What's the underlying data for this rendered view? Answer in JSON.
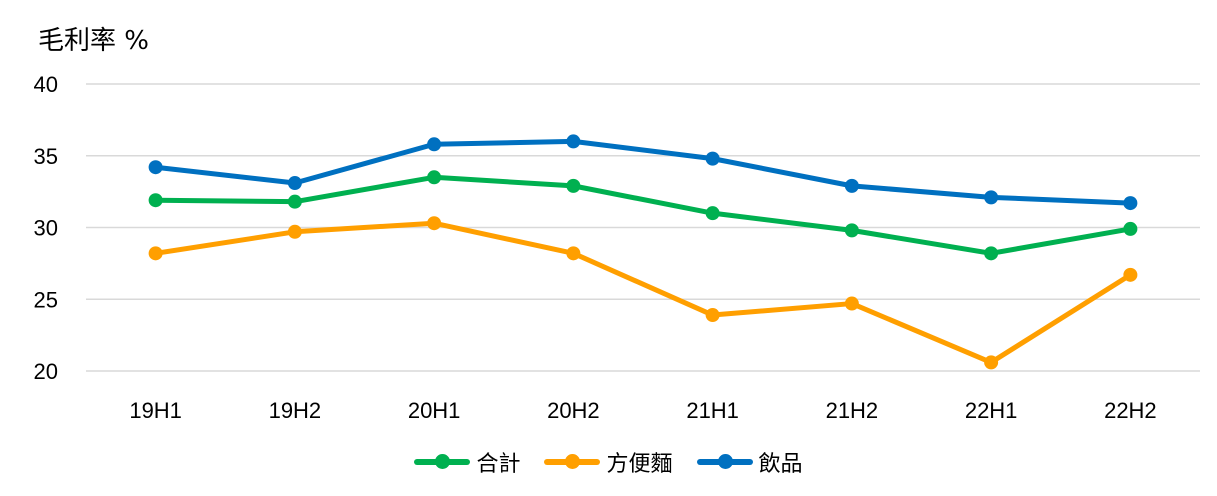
{
  "chart_data": {
    "type": "line",
    "ylabel": "毛利率 %",
    "categories": [
      "19H1",
      "19H2",
      "20H1",
      "20H2",
      "21H1",
      "21H2",
      "22H1",
      "22H2"
    ],
    "ylim": [
      20,
      40
    ],
    "yticks": [
      20,
      25,
      30,
      35,
      40
    ],
    "grid": true,
    "legend_position": "bottom",
    "series": [
      {
        "name": "合計",
        "color": "#00b050",
        "values": [
          31.9,
          31.8,
          33.5,
          32.9,
          31.0,
          29.8,
          28.2,
          29.9
        ]
      },
      {
        "name": "方便麵",
        "color": "#ff9f00",
        "values": [
          28.2,
          29.7,
          30.3,
          28.2,
          23.9,
          24.7,
          20.6,
          26.7
        ]
      },
      {
        "name": "飲品",
        "color": "#0070c0",
        "values": [
          34.2,
          33.1,
          35.8,
          36.0,
          34.8,
          32.9,
          32.1,
          31.7
        ]
      }
    ]
  }
}
